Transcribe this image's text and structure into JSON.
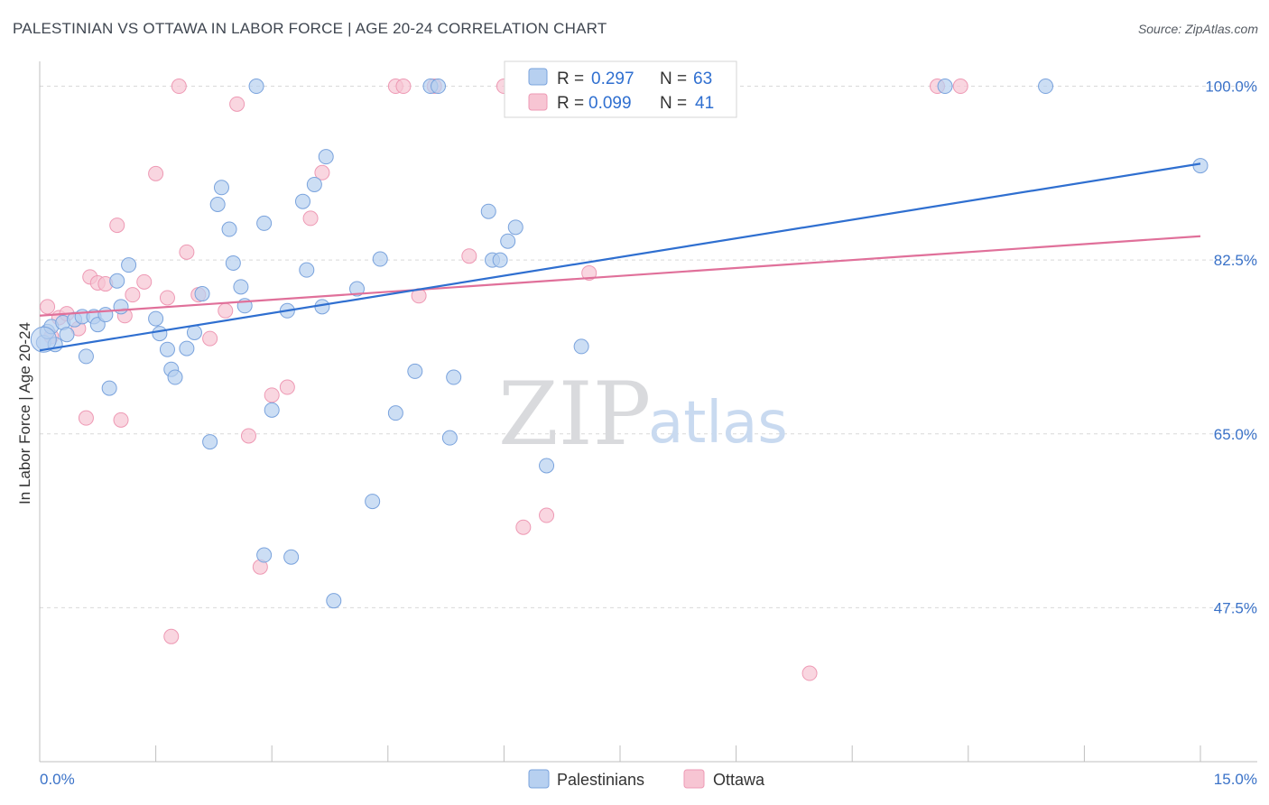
{
  "title": "PALESTINIAN VS OTTAWA IN LABOR FORCE | AGE 20-24 CORRELATION CHART",
  "source": "Source: ZipAtlas.com",
  "watermark": {
    "zip": "ZIP",
    "atlas": "atlas"
  },
  "colors": {
    "palestinians_fill": "#b7d0f0",
    "palestinians_stroke": "#7aa3dd",
    "palestinians_line": "#2f6fd0",
    "ottawa_fill": "#f7c5d3",
    "ottawa_stroke": "#ee99b4",
    "ottawa_line": "#e0709a",
    "axis_label": "#3a72c8",
    "grid": "#d9d9d9"
  },
  "legend": {
    "rows": [
      {
        "r_label": "R = ",
        "r_value": "0.297",
        "n_label": "N = ",
        "n_value": "63"
      },
      {
        "r_label": "R = ",
        "r_value": "0.099",
        "n_label": "N = ",
        "n_value": "41"
      }
    ]
  },
  "bottom_legend": [
    "Palestinians",
    "Ottawa"
  ],
  "chart_data": {
    "type": "scatter",
    "title": "PALESTINIAN VS OTTAWA IN LABOR FORCE | AGE 20-24 CORRELATION CHART",
    "xlabel": "",
    "ylabel": "In Labor Force | Age 20-24",
    "xlim": [
      0,
      15
    ],
    "ylim": [
      32,
      101.5
    ],
    "x_tick_labels": [
      "0.0%",
      "15.0%"
    ],
    "y_ticks": [
      47.5,
      65.0,
      82.5,
      100.0
    ],
    "y_tick_labels": [
      "47.5%",
      "65.0%",
      "82.5%",
      "100.0%"
    ],
    "grid": "horizontal dashed",
    "legend_position": "top-center",
    "series": [
      {
        "name": "Palestinians",
        "R": 0.297,
        "N": 63,
        "trend": [
          [
            0.0,
            73.4
          ],
          [
            15.0,
            92.2
          ]
        ],
        "points": [
          [
            0.05,
            74.2
          ],
          [
            0.1,
            75.3
          ],
          [
            0.15,
            75.8
          ],
          [
            0.2,
            74.0
          ],
          [
            0.3,
            76.2
          ],
          [
            0.35,
            75.0
          ],
          [
            0.45,
            76.5
          ],
          [
            0.55,
            76.8
          ],
          [
            0.6,
            72.8
          ],
          [
            0.7,
            76.8
          ],
          [
            0.75,
            76.0
          ],
          [
            0.85,
            77.0
          ],
          [
            0.9,
            69.6
          ],
          [
            1.0,
            80.4
          ],
          [
            1.05,
            77.8
          ],
          [
            1.15,
            82.0
          ],
          [
            1.5,
            76.6
          ],
          [
            1.55,
            75.1
          ],
          [
            1.65,
            73.5
          ],
          [
            1.7,
            71.5
          ],
          [
            1.75,
            70.7
          ],
          [
            1.9,
            73.6
          ],
          [
            2.0,
            75.2
          ],
          [
            2.1,
            79.1
          ],
          [
            2.2,
            64.2
          ],
          [
            2.3,
            88.1
          ],
          [
            2.35,
            89.8
          ],
          [
            2.45,
            85.6
          ],
          [
            2.5,
            82.2
          ],
          [
            2.6,
            79.8
          ],
          [
            2.65,
            77.9
          ],
          [
            2.8,
            100.0
          ],
          [
            2.9,
            86.2
          ],
          [
            2.9,
            52.8
          ],
          [
            3.0,
            67.4
          ],
          [
            3.2,
            77.4
          ],
          [
            3.25,
            52.6
          ],
          [
            3.4,
            88.4
          ],
          [
            3.45,
            81.5
          ],
          [
            3.55,
            90.1
          ],
          [
            3.65,
            77.8
          ],
          [
            3.7,
            92.9
          ],
          [
            3.8,
            48.2
          ],
          [
            4.1,
            79.6
          ],
          [
            4.3,
            58.2
          ],
          [
            4.4,
            82.6
          ],
          [
            4.6,
            67.1
          ],
          [
            4.85,
            71.3
          ],
          [
            5.05,
            100.0
          ],
          [
            5.15,
            100.0
          ],
          [
            5.3,
            64.6
          ],
          [
            5.35,
            70.7
          ],
          [
            5.8,
            87.4
          ],
          [
            5.85,
            82.5
          ],
          [
            5.95,
            82.5
          ],
          [
            6.05,
            84.4
          ],
          [
            6.15,
            85.8
          ],
          [
            6.55,
            61.8
          ],
          [
            7.0,
            73.8
          ],
          [
            7.5,
            100.0
          ],
          [
            11.7,
            100.0
          ],
          [
            13.0,
            100.0
          ],
          [
            15.0,
            92.0
          ]
        ]
      },
      {
        "name": "Ottawa",
        "R": 0.099,
        "N": 41,
        "trend": [
          [
            0.0,
            76.9
          ],
          [
            15.0,
            84.9
          ]
        ],
        "points": [
          [
            0.1,
            77.8
          ],
          [
            0.15,
            74.8
          ],
          [
            0.25,
            76.7
          ],
          [
            0.35,
            77.1
          ],
          [
            0.5,
            75.6
          ],
          [
            0.6,
            66.6
          ],
          [
            0.65,
            80.8
          ],
          [
            0.75,
            80.2
          ],
          [
            0.85,
            80.1
          ],
          [
            1.0,
            86.0
          ],
          [
            1.05,
            66.4
          ],
          [
            1.1,
            76.9
          ],
          [
            1.2,
            79.0
          ],
          [
            1.35,
            80.3
          ],
          [
            1.5,
            91.2
          ],
          [
            1.65,
            78.7
          ],
          [
            1.7,
            44.6
          ],
          [
            1.8,
            100.0
          ],
          [
            1.9,
            83.3
          ],
          [
            2.05,
            79.0
          ],
          [
            2.2,
            74.6
          ],
          [
            2.4,
            77.4
          ],
          [
            2.55,
            98.2
          ],
          [
            2.7,
            64.8
          ],
          [
            2.85,
            51.6
          ],
          [
            3.0,
            68.9
          ],
          [
            3.2,
            69.7
          ],
          [
            3.5,
            86.7
          ],
          [
            3.65,
            91.3
          ],
          [
            4.6,
            100.0
          ],
          [
            4.7,
            100.0
          ],
          [
            4.9,
            78.9
          ],
          [
            5.1,
            100.0
          ],
          [
            5.55,
            82.9
          ],
          [
            6.0,
            100.0
          ],
          [
            6.25,
            55.6
          ],
          [
            6.55,
            56.8
          ],
          [
            7.1,
            81.2
          ],
          [
            9.95,
            40.9
          ],
          [
            11.6,
            100.0
          ],
          [
            11.9,
            100.0
          ]
        ]
      }
    ]
  }
}
